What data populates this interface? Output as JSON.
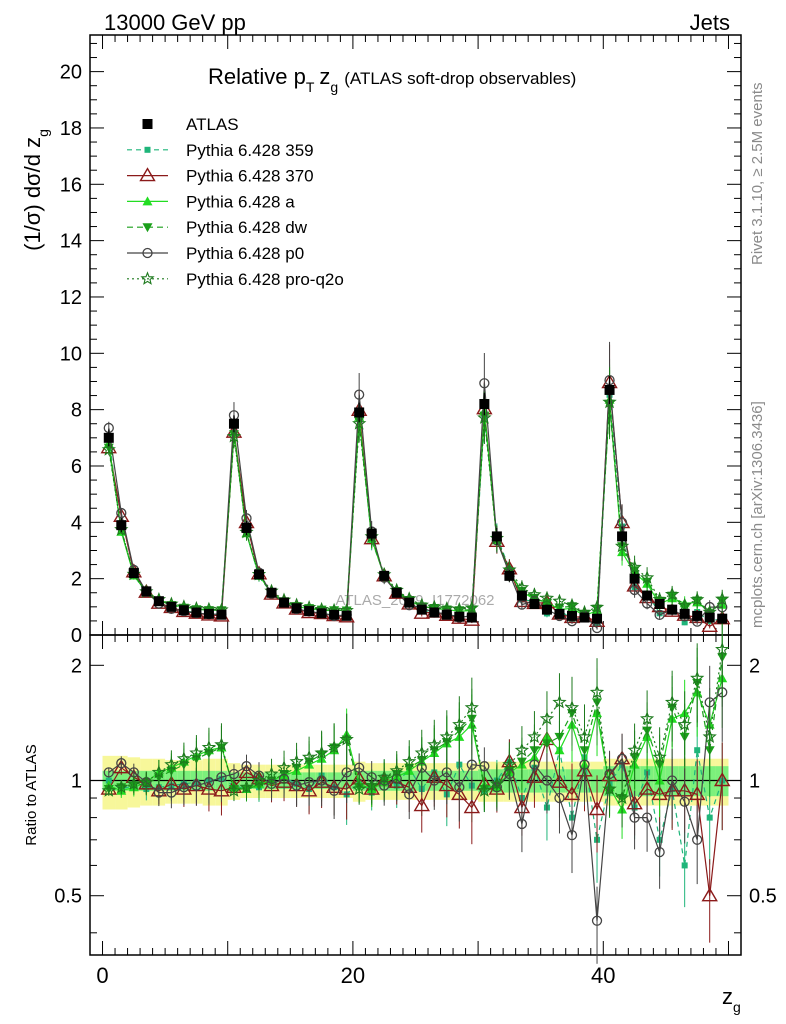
{
  "header": {
    "energy_label": "13000 GeV pp",
    "process_label": "Jets"
  },
  "side_text": {
    "rivet": "Rivet 3.1.10, ≥ 2.5M events",
    "mcplots": "mcplots.cern.ch [arXiv:1306.3436]"
  },
  "colors": {
    "atlas": "#000000",
    "p359": "#1fb57a",
    "p370": "#8b1a1a",
    "pa": "#22dd22",
    "pdw": "#1a9f1a",
    "pp0": "#444444",
    "pq2o": "#1d7a1d",
    "band_inner": "#7cf07c",
    "band_outer": "#f7f79a"
  },
  "chart_data": [
    {
      "type": "line",
      "title": "Relative p_T z_g",
      "title_parts": {
        "main": "Relative p",
        "sub": "T",
        "var": "z",
        "var_sub": "g",
        "suffix": "(ATLAS soft-drop observables)"
      },
      "ylabel": "(1/σ) dσ/d z_g",
      "xlim": [
        -1,
        51
      ],
      "ylim": [
        0,
        21.3
      ],
      "yticks": [
        0,
        2,
        4,
        6,
        8,
        10,
        12,
        14,
        16,
        18,
        20
      ],
      "watermark": "ATLAS_2019_I1772062",
      "legend_position": "top-left",
      "x": [
        0.5,
        1.5,
        2.5,
        3.5,
        4.5,
        5.5,
        6.5,
        7.5,
        8.5,
        9.5,
        10.5,
        11.5,
        12.5,
        13.5,
        14.5,
        15.5,
        16.5,
        17.5,
        18.5,
        19.5,
        20.5,
        21.5,
        22.5,
        23.5,
        24.5,
        25.5,
        26.5,
        27.5,
        28.5,
        29.5,
        30.5,
        31.5,
        32.5,
        33.5,
        34.5,
        35.5,
        36.5,
        37.5,
        38.5,
        39.5,
        40.5,
        41.5,
        42.5,
        43.5,
        44.5,
        45.5,
        46.5,
        47.5,
        48.5,
        49.5
      ],
      "series": [
        {
          "name": "ATLAS",
          "key": "atlas",
          "values": [
            7.0,
            3.9,
            2.2,
            1.55,
            1.2,
            1.0,
            0.88,
            0.8,
            0.75,
            0.72,
            7.5,
            3.8,
            2.15,
            1.5,
            1.15,
            0.95,
            0.85,
            0.77,
            0.72,
            0.68,
            7.9,
            3.6,
            2.1,
            1.5,
            1.15,
            0.9,
            0.8,
            0.72,
            0.65,
            0.62,
            8.2,
            3.5,
            2.1,
            1.4,
            1.1,
            0.9,
            0.75,
            0.68,
            0.62,
            0.58,
            8.7,
            3.5,
            2.0,
            1.4,
            1.1,
            0.9,
            0.75,
            0.68,
            0.62,
            0.58
          ],
          "errors": [
            0.3,
            0.25,
            0.15,
            0.1,
            0.08,
            0.07,
            0.06,
            0.06,
            0.06,
            0.06,
            0.3,
            0.25,
            0.15,
            0.1,
            0.08,
            0.07,
            0.06,
            0.06,
            0.06,
            0.06,
            0.35,
            0.25,
            0.15,
            0.1,
            0.08,
            0.07,
            0.06,
            0.06,
            0.06,
            0.06,
            0.4,
            0.3,
            0.2,
            0.12,
            0.1,
            0.08,
            0.07,
            0.07,
            0.07,
            0.07,
            0.5,
            0.35,
            0.25,
            0.15,
            0.12,
            0.1,
            0.09,
            0.09,
            0.09,
            0.09
          ]
        },
        {
          "name": "Pythia 6.428 359",
          "key": "p359",
          "ratio": [
            1.0,
            0.95,
            0.97,
            0.95,
            0.96,
            0.97,
            0.98,
            0.99,
            1.0,
            1.01,
            0.97,
            0.95,
            0.96,
            1.0,
            1.02,
            0.98,
            0.95,
            1.03,
            0.96,
            0.92,
            0.99,
            0.93,
            1.02,
            0.97,
            1.08,
            0.95,
            1.05,
            0.92,
            1.1,
            0.97,
            0.94,
            1.0,
            1.12,
            0.9,
            1.08,
            0.85,
            1.2,
            0.8,
            1.15,
            0.7,
            0.98,
            1.1,
            0.85,
            1.05,
            0.7,
            0.95,
            0.6,
            1.2,
            0.8,
            1.0
          ]
        },
        {
          "name": "Pythia 6.428 370",
          "key": "p370",
          "ratio": [
            0.95,
            1.08,
            1.02,
            0.98,
            0.94,
            0.98,
            0.95,
            0.97,
            0.95,
            0.94,
            0.96,
            1.05,
            1.01,
            0.97,
            0.99,
            0.97,
            0.94,
            0.99,
            0.96,
            0.95,
            1.01,
            0.95,
            1.0,
            0.99,
            0.96,
            0.86,
            1.02,
            0.97,
            0.92,
            0.85,
            0.98,
            0.95,
            1.12,
            0.85,
            1.02,
            1.28,
            0.99,
            0.92,
            1.06,
            0.84,
            1.03,
            1.14,
            0.87,
            0.95,
            0.92,
            0.94,
            0.94,
            0.92,
            0.5,
            1.0
          ]
        },
        {
          "name": "Pythia 6.428 a",
          "key": "pa",
          "ratio": [
            0.97,
            0.94,
            0.96,
            0.99,
            1.05,
            1.08,
            1.12,
            1.16,
            1.2,
            1.22,
            0.96,
            0.95,
            0.98,
            1.0,
            1.03,
            1.06,
            1.1,
            1.14,
            1.2,
            1.32,
            0.98,
            0.95,
            0.99,
            1.02,
            1.06,
            1.12,
            1.18,
            1.25,
            1.3,
            1.4,
            0.97,
            0.96,
            1.05,
            1.1,
            1.15,
            1.3,
            1.2,
            1.4,
            1.1,
            1.5,
            0.96,
            0.84,
            1.1,
            1.3,
            1.0,
            1.45,
            1.5,
            1.7,
            1.4,
            1.85
          ]
        },
        {
          "name": "Pythia 6.428 dw",
          "key": "pdw",
          "ratio": [
            0.95,
            0.96,
            0.97,
            0.98,
            1.02,
            1.06,
            1.1,
            1.14,
            1.18,
            1.22,
            0.95,
            0.95,
            0.97,
            1.0,
            1.04,
            1.08,
            1.12,
            1.17,
            1.22,
            1.28,
            0.96,
            0.96,
            1.0,
            1.04,
            1.08,
            1.13,
            1.2,
            1.26,
            1.35,
            1.45,
            0.95,
            0.97,
            1.06,
            1.12,
            1.2,
            1.25,
            1.3,
            1.5,
            1.2,
            1.6,
            0.94,
            0.9,
            1.15,
            1.35,
            1.1,
            1.55,
            1.3,
            1.8,
            1.2,
            2.1
          ]
        },
        {
          "name": "Pythia 6.428 p0",
          "key": "pp0",
          "ratio": [
            1.05,
            1.11,
            1.05,
            0.99,
            0.93,
            0.93,
            0.96,
            0.97,
            0.99,
            1.02,
            1.04,
            1.09,
            1.03,
            0.98,
            1.01,
            0.97,
            0.99,
            1.0,
            0.94,
            1.05,
            1.08,
            1.02,
            0.97,
            1.01,
            0.92,
            1.08,
            1.0,
            1.05,
            0.96,
            1.1,
            1.09,
            0.96,
            1.04,
            0.77,
            1.1,
            1.0,
            0.9,
            0.72,
            1.1,
            0.43,
            1.04,
            1.14,
            0.8,
            0.8,
            0.65,
            1.0,
            0.88,
            0.7,
            1.6,
            1.7
          ]
        },
        {
          "name": "Pythia 6.428 pro-q2o",
          "key": "pq2o",
          "ratio": [
            0.94,
            0.96,
            0.98,
            0.99,
            1.05,
            1.1,
            1.14,
            1.18,
            1.22,
            1.24,
            0.94,
            0.96,
            1.0,
            1.04,
            1.08,
            1.12,
            1.15,
            1.18,
            1.22,
            1.28,
            0.95,
            0.97,
            1.02,
            1.06,
            1.12,
            1.18,
            1.24,
            1.3,
            1.4,
            1.55,
            0.94,
            0.98,
            1.1,
            1.2,
            1.3,
            1.45,
            1.6,
            1.55,
            1.3,
            1.7,
            0.95,
            0.9,
            1.2,
            1.45,
            1.15,
            1.6,
            1.4,
            1.85,
            1.3,
            2.2
          ]
        }
      ]
    },
    {
      "type": "line",
      "title": "",
      "ylabel": "Ratio to ATLAS",
      "xlabel": "z_g",
      "xlim": [
        -1,
        51
      ],
      "ylim": [
        0.35,
        2.4
      ],
      "yticks": [
        0.5,
        1,
        2
      ],
      "ytick_labels": [
        "0.5",
        "1",
        "2"
      ],
      "xticks": [
        0,
        20,
        40
      ],
      "xtick_labels": [
        "0",
        "20",
        "40"
      ],
      "band_inner_halfwidth": [
        0.06,
        0.06,
        0.06,
        0.06,
        0.06,
        0.06,
        0.06,
        0.06,
        0.06,
        0.06,
        0.05,
        0.05,
        0.05,
        0.05,
        0.05,
        0.05,
        0.05,
        0.05,
        0.05,
        0.05,
        0.06,
        0.06,
        0.06,
        0.06,
        0.06,
        0.06,
        0.06,
        0.06,
        0.06,
        0.06,
        0.07,
        0.07,
        0.07,
        0.07,
        0.07,
        0.07,
        0.07,
        0.07,
        0.07,
        0.07,
        0.09,
        0.09,
        0.09,
        0.09,
        0.09,
        0.09,
        0.09,
        0.09,
        0.09,
        0.09
      ],
      "band_outer_halfwidth": [
        0.16,
        0.16,
        0.15,
        0.14,
        0.14,
        0.13,
        0.13,
        0.13,
        0.14,
        0.14,
        0.11,
        0.1,
        0.1,
        0.1,
        0.1,
        0.1,
        0.1,
        0.1,
        0.1,
        0.1,
        0.12,
        0.11,
        0.11,
        0.11,
        0.11,
        0.11,
        0.11,
        0.11,
        0.11,
        0.11,
        0.12,
        0.12,
        0.12,
        0.12,
        0.12,
        0.12,
        0.12,
        0.12,
        0.12,
        0.12,
        0.14,
        0.14,
        0.14,
        0.14,
        0.14,
        0.14,
        0.14,
        0.14,
        0.14,
        0.14
      ]
    }
  ]
}
